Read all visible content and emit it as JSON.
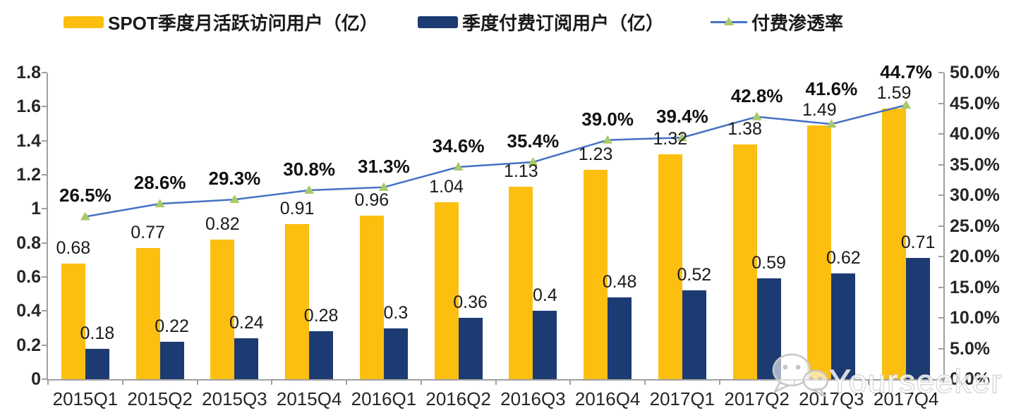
{
  "chart_data": {
    "type": "bar",
    "subtype": "clustered-bar-with-line-combo",
    "title": "",
    "categories": [
      "2015Q1",
      "2015Q2",
      "2015Q3",
      "2015Q4",
      "2016Q1",
      "2016Q2",
      "2016Q3",
      "2016Q4",
      "2017Q1",
      "2017Q2",
      "2017Q3",
      "2017Q4"
    ],
    "series": [
      {
        "name": "SPOT季度月活跃访问用户（亿）",
        "type": "bar",
        "axis": "left",
        "color": "#FCBF10",
        "values": [
          0.68,
          0.77,
          0.82,
          0.91,
          0.96,
          1.04,
          1.13,
          1.23,
          1.32,
          1.38,
          1.49,
          1.59
        ],
        "labels": [
          "0.68",
          "0.77",
          "0.82",
          "0.91",
          "0.96",
          "1.04",
          "1.13",
          "1.23",
          "1.32",
          "1.38",
          "1.49",
          "1.59"
        ]
      },
      {
        "name": "季度付费订阅用户（亿）",
        "type": "bar",
        "axis": "left",
        "color": "#1C3B72",
        "values": [
          0.18,
          0.22,
          0.24,
          0.28,
          0.3,
          0.36,
          0.4,
          0.48,
          0.52,
          0.59,
          0.62,
          0.71
        ],
        "labels": [
          "0.18",
          "0.22",
          "0.24",
          "0.28",
          "0.3",
          "0.36",
          "0.4",
          "0.48",
          "0.52",
          "0.59",
          "0.62",
          "0.71"
        ]
      },
      {
        "name": "付费渗透率",
        "type": "line",
        "axis": "right",
        "color": "#4472C4",
        "marker": "triangle",
        "marker_color": "#A9C96A",
        "values": [
          26.5,
          28.6,
          29.3,
          30.8,
          31.3,
          34.6,
          35.4,
          39.0,
          39.4,
          42.8,
          41.6,
          44.7
        ],
        "labels": [
          "26.5%",
          "28.6%",
          "29.3%",
          "30.8%",
          "31.3%",
          "34.6%",
          "35.4%",
          "39.0%",
          "39.4%",
          "42.8%",
          "41.6%",
          "44.7%"
        ]
      }
    ],
    "left_axis": {
      "min": 0,
      "max": 1.8,
      "step": 0.2,
      "ticks": [
        "0",
        "0.2",
        "0.4",
        "0.6",
        "0.8",
        "1",
        "1.2",
        "1.4",
        "1.6",
        "1.8"
      ]
    },
    "right_axis": {
      "min": 0,
      "max": 50,
      "step": 5,
      "ticks": [
        "0.0%",
        "5.0%",
        "10.0%",
        "15.0%",
        "20.0%",
        "25.0%",
        "30.0%",
        "35.0%",
        "40.0%",
        "45.0%",
        "50.0%"
      ]
    },
    "grid": false,
    "legend_position": "top"
  },
  "watermark": {
    "text": "Yourseeker",
    "icon": "wechat-icon",
    "color": "#C6C6C6"
  },
  "colors": {
    "mau_bar": "#FCBF10",
    "subscriber_bar": "#1C3B72",
    "penetration_line": "#4472C4",
    "penetration_marker": "#A9C96A",
    "axis": "#A0A0A0",
    "label_text": "#1A1A1A",
    "background": "#FFFFFF"
  }
}
